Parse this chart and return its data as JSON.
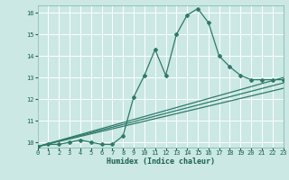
{
  "background_color": "#cbe8e4",
  "grid_color": "#ffffff",
  "line_color": "#2d7a6a",
  "xlabel": "Humidex (Indice chaleur)",
  "xlim": [
    0,
    23
  ],
  "ylim": [
    9.75,
    16.35
  ],
  "xticks": [
    0,
    1,
    2,
    3,
    4,
    5,
    6,
    7,
    8,
    9,
    10,
    11,
    12,
    13,
    14,
    15,
    16,
    17,
    18,
    19,
    20,
    21,
    22,
    23
  ],
  "yticks": [
    10,
    11,
    12,
    13,
    14,
    15,
    16
  ],
  "x_main": [
    0,
    1,
    2,
    3,
    4,
    5,
    6,
    7,
    8,
    9,
    10,
    11,
    12,
    13,
    14,
    15,
    16,
    17,
    18,
    19,
    20,
    21,
    22,
    23
  ],
  "y_main": [
    9.8,
    9.9,
    9.9,
    10.0,
    10.1,
    10.0,
    9.9,
    9.9,
    10.3,
    12.1,
    13.1,
    14.3,
    13.1,
    15.0,
    15.9,
    16.2,
    15.55,
    14.0,
    13.5,
    13.1,
    12.9,
    12.9,
    12.9,
    12.9
  ],
  "linear_lines": [
    {
      "x": [
        0,
        23
      ],
      "y": [
        9.8,
        13.0
      ]
    },
    {
      "x": [
        0,
        23
      ],
      "y": [
        9.8,
        12.75
      ]
    },
    {
      "x": [
        0,
        23
      ],
      "y": [
        9.8,
        12.5
      ]
    }
  ],
  "tick_fontsize": 5.0,
  "xlabel_fontsize": 6.0,
  "marker_size": 2.0,
  "linewidth": 0.9
}
